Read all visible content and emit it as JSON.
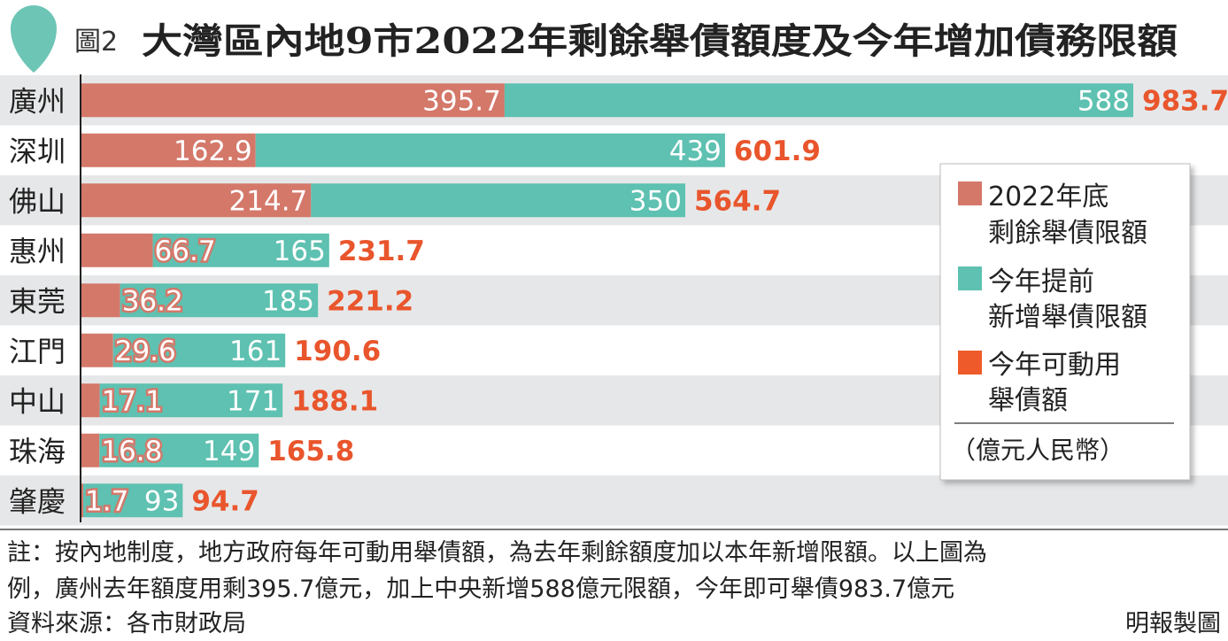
{
  "figure": {
    "number": "圖2",
    "title": "大灣區內地9市2022年剩餘舉債額度及今年增加債務限額"
  },
  "legend": {
    "items": [
      {
        "key": "remaining",
        "lines": [
          "2022年底",
          "剩餘舉債限額"
        ],
        "color": "#d4786a"
      },
      {
        "key": "new",
        "lines": [
          "今年提前",
          "新增舉債限額"
        ],
        "color": "#5ec1b1"
      },
      {
        "key": "total",
        "lines": [
          "今年可動用",
          "舉債額"
        ],
        "color": "#ef5a2a"
      }
    ],
    "unit": "（億元人民幣）"
  },
  "colors": {
    "remaining": "#d4786a",
    "new": "#5ec1b1",
    "total_text": "#e9552c",
    "stripe": "#e6e7e8",
    "title_drop": "#6cc5b5"
  },
  "chart_data": {
    "type": "bar",
    "orientation": "horizontal",
    "stacked": true,
    "categories": [
      "廣州",
      "深圳",
      "佛山",
      "惠州",
      "東莞",
      "江門",
      "中山",
      "珠海",
      "肇慶"
    ],
    "series": [
      {
        "name": "2022年底剩餘舉債限額",
        "values": [
          395.7,
          162.9,
          214.7,
          66.7,
          36.2,
          29.6,
          17.1,
          16.8,
          1.7
        ]
      },
      {
        "name": "今年提前新增舉債限額",
        "values": [
          588,
          439,
          350,
          165,
          185,
          161,
          171,
          149,
          93
        ]
      }
    ],
    "totals_name": "今年可動用舉債額",
    "totals": [
      983.7,
      601.9,
      564.7,
      231.7,
      221.2,
      190.6,
      188.1,
      165.8,
      94.7
    ],
    "xlim": [
      0,
      983.7
    ],
    "unit": "億元人民幣",
    "legend_position": "right",
    "grid": false
  },
  "footer": {
    "note_line1": "註：按內地制度，地方政府每年可動用舉債額，為去年剩餘額度加以本年新增限額。以上圖為",
    "note_line2": "例，廣州去年額度用剩395.7億元，加上中央新增588億元限額，今年即可舉債983.7億元",
    "source": "資料來源：各市財政局",
    "credit": "明報製圖"
  }
}
